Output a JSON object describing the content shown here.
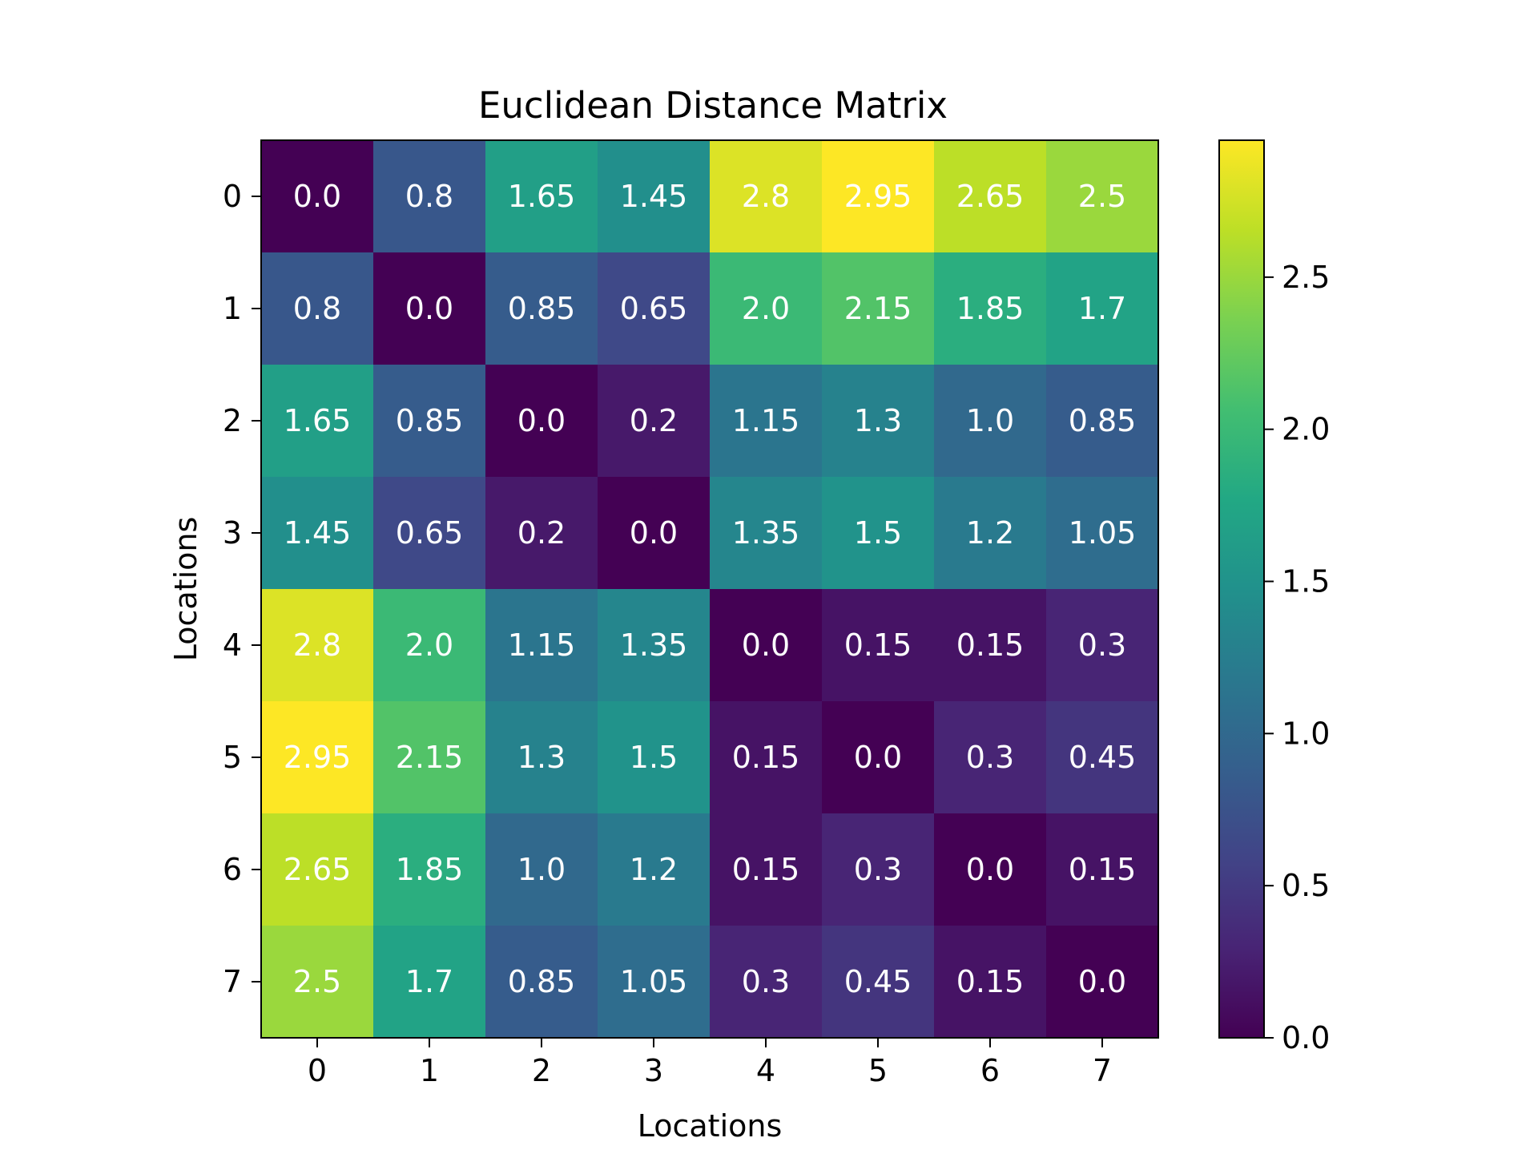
{
  "chart_data": {
    "type": "heatmap",
    "title": "Euclidean Distance Matrix",
    "xlabel": "Locations",
    "ylabel": "Locations",
    "x_categories": [
      "0",
      "1",
      "2",
      "3",
      "4",
      "5",
      "6",
      "7"
    ],
    "y_categories": [
      "0",
      "1",
      "2",
      "3",
      "4",
      "5",
      "6",
      "7"
    ],
    "values": [
      [
        0.0,
        0.8,
        1.65,
        1.45,
        2.8,
        2.95,
        2.65,
        2.5
      ],
      [
        0.8,
        0.0,
        0.85,
        0.65,
        2.0,
        2.15,
        1.85,
        1.7
      ],
      [
        1.65,
        0.85,
        0.0,
        0.2,
        1.15,
        1.3,
        1.0,
        0.85
      ],
      [
        1.45,
        0.65,
        0.2,
        0.0,
        1.35,
        1.5,
        1.2,
        1.05
      ],
      [
        2.8,
        2.0,
        1.15,
        1.35,
        0.0,
        0.15,
        0.15,
        0.3
      ],
      [
        2.95,
        2.15,
        1.3,
        1.5,
        0.15,
        0.0,
        0.3,
        0.45
      ],
      [
        2.65,
        1.85,
        1.0,
        1.2,
        0.15,
        0.3,
        0.0,
        0.15
      ],
      [
        2.5,
        1.7,
        0.85,
        1.05,
        0.3,
        0.45,
        0.15,
        0.0
      ]
    ],
    "value_labels": [
      [
        "0.0",
        "0.8",
        "1.65",
        "1.45",
        "2.8",
        "2.95",
        "2.65",
        "2.5"
      ],
      [
        "0.8",
        "0.0",
        "0.85",
        "0.65",
        "2.0",
        "2.15",
        "1.85",
        "1.7"
      ],
      [
        "1.65",
        "0.85",
        "0.0",
        "0.2",
        "1.15",
        "1.3",
        "1.0",
        "0.85"
      ],
      [
        "1.45",
        "0.65",
        "0.2",
        "0.0",
        "1.35",
        "1.5",
        "1.2",
        "1.05"
      ],
      [
        "2.8",
        "2.0",
        "1.15",
        "1.35",
        "0.0",
        "0.15",
        "0.15",
        "0.3"
      ],
      [
        "2.95",
        "2.15",
        "1.3",
        "1.5",
        "0.15",
        "0.0",
        "0.3",
        "0.45"
      ],
      [
        "2.65",
        "1.85",
        "1.0",
        "1.2",
        "0.15",
        "0.3",
        "0.0",
        "0.15"
      ],
      [
        "2.5",
        "1.7",
        "0.85",
        "1.05",
        "0.3",
        "0.45",
        "0.15",
        "0.0"
      ]
    ],
    "colorbar": {
      "colormap": "viridis",
      "range": [
        0.0,
        2.95
      ],
      "ticks": [
        0.0,
        0.5,
        1.0,
        1.5,
        2.0,
        2.5
      ],
      "tick_labels": [
        "0.0",
        "0.5",
        "1.0",
        "1.5",
        "2.0",
        "2.5"
      ]
    },
    "grid": false
  }
}
